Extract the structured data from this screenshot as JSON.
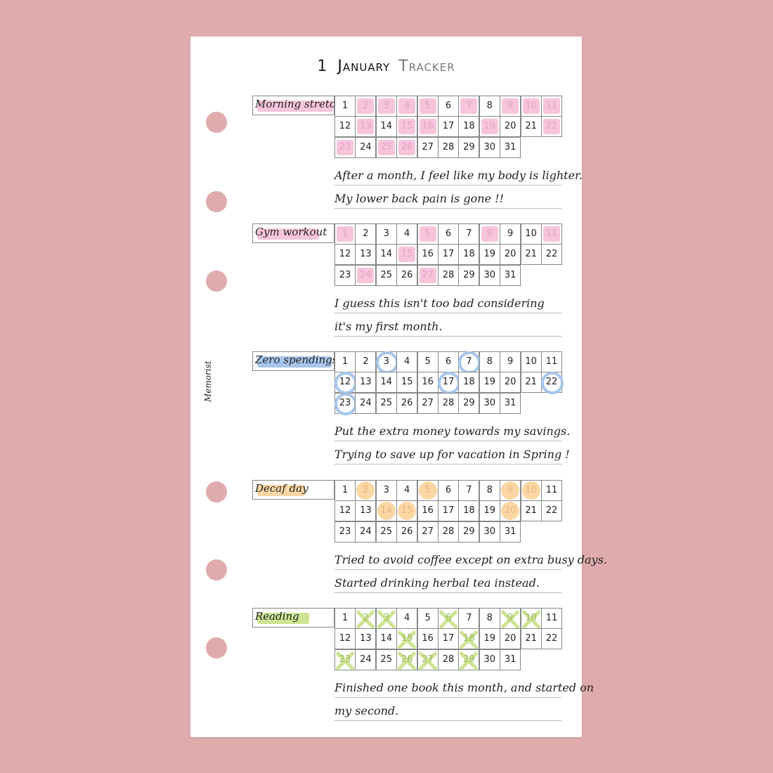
{
  "page": {
    "title_number": "1",
    "title_month": "January",
    "title_word": "Tracker",
    "brand": "Memorist"
  },
  "colors": {
    "background": "#dfabad",
    "pink_highlight": "#f6c5dc",
    "blue_circle": "#a8c6ec",
    "yellow_dot": "#fbd7a5",
    "green_cross": "#cde493"
  },
  "days_in_month": 31,
  "trackers": [
    {
      "label": "Morning stretch",
      "highlight_color": "#f6c5dc",
      "mark_style": "pink",
      "marked_days": [
        2,
        3,
        4,
        5,
        7,
        9,
        10,
        11,
        13,
        15,
        16,
        19,
        22,
        23,
        25,
        26
      ],
      "notes": [
        "After a month, I feel like my body is lighter.",
        "My lower back pain is gone !!"
      ]
    },
    {
      "label": "Gym workout",
      "highlight_color": "#f6c5dc",
      "mark_style": "pink",
      "marked_days": [
        1,
        5,
        8,
        11,
        15,
        24,
        27
      ],
      "notes": [
        "I guess this isn't too bad considering",
        "it's my first month."
      ]
    },
    {
      "label": "Zero spendings",
      "highlight_color": "#a8c6ec",
      "mark_style": "blue",
      "marked_days": [
        3,
        7,
        12,
        17,
        22,
        23
      ],
      "notes": [
        "Put the extra money towards my savings.",
        "Trying to save up for vacation in Spring !"
      ]
    },
    {
      "label": "Decaf day",
      "highlight_color": "#fbd7a5",
      "mark_style": "yellow",
      "marked_days": [
        2,
        5,
        9,
        10,
        14,
        15,
        20
      ],
      "notes": [
        "Tried to avoid coffee except on extra busy days.",
        "Started drinking herbal tea instead."
      ]
    },
    {
      "label": "Reading",
      "highlight_color": "#cde493",
      "mark_style": "green",
      "marked_days": [
        2,
        3,
        6,
        9,
        10,
        15,
        18,
        23,
        26,
        27,
        29
      ],
      "notes": [
        "Finished one book this month, and started on",
        "my second."
      ]
    }
  ]
}
